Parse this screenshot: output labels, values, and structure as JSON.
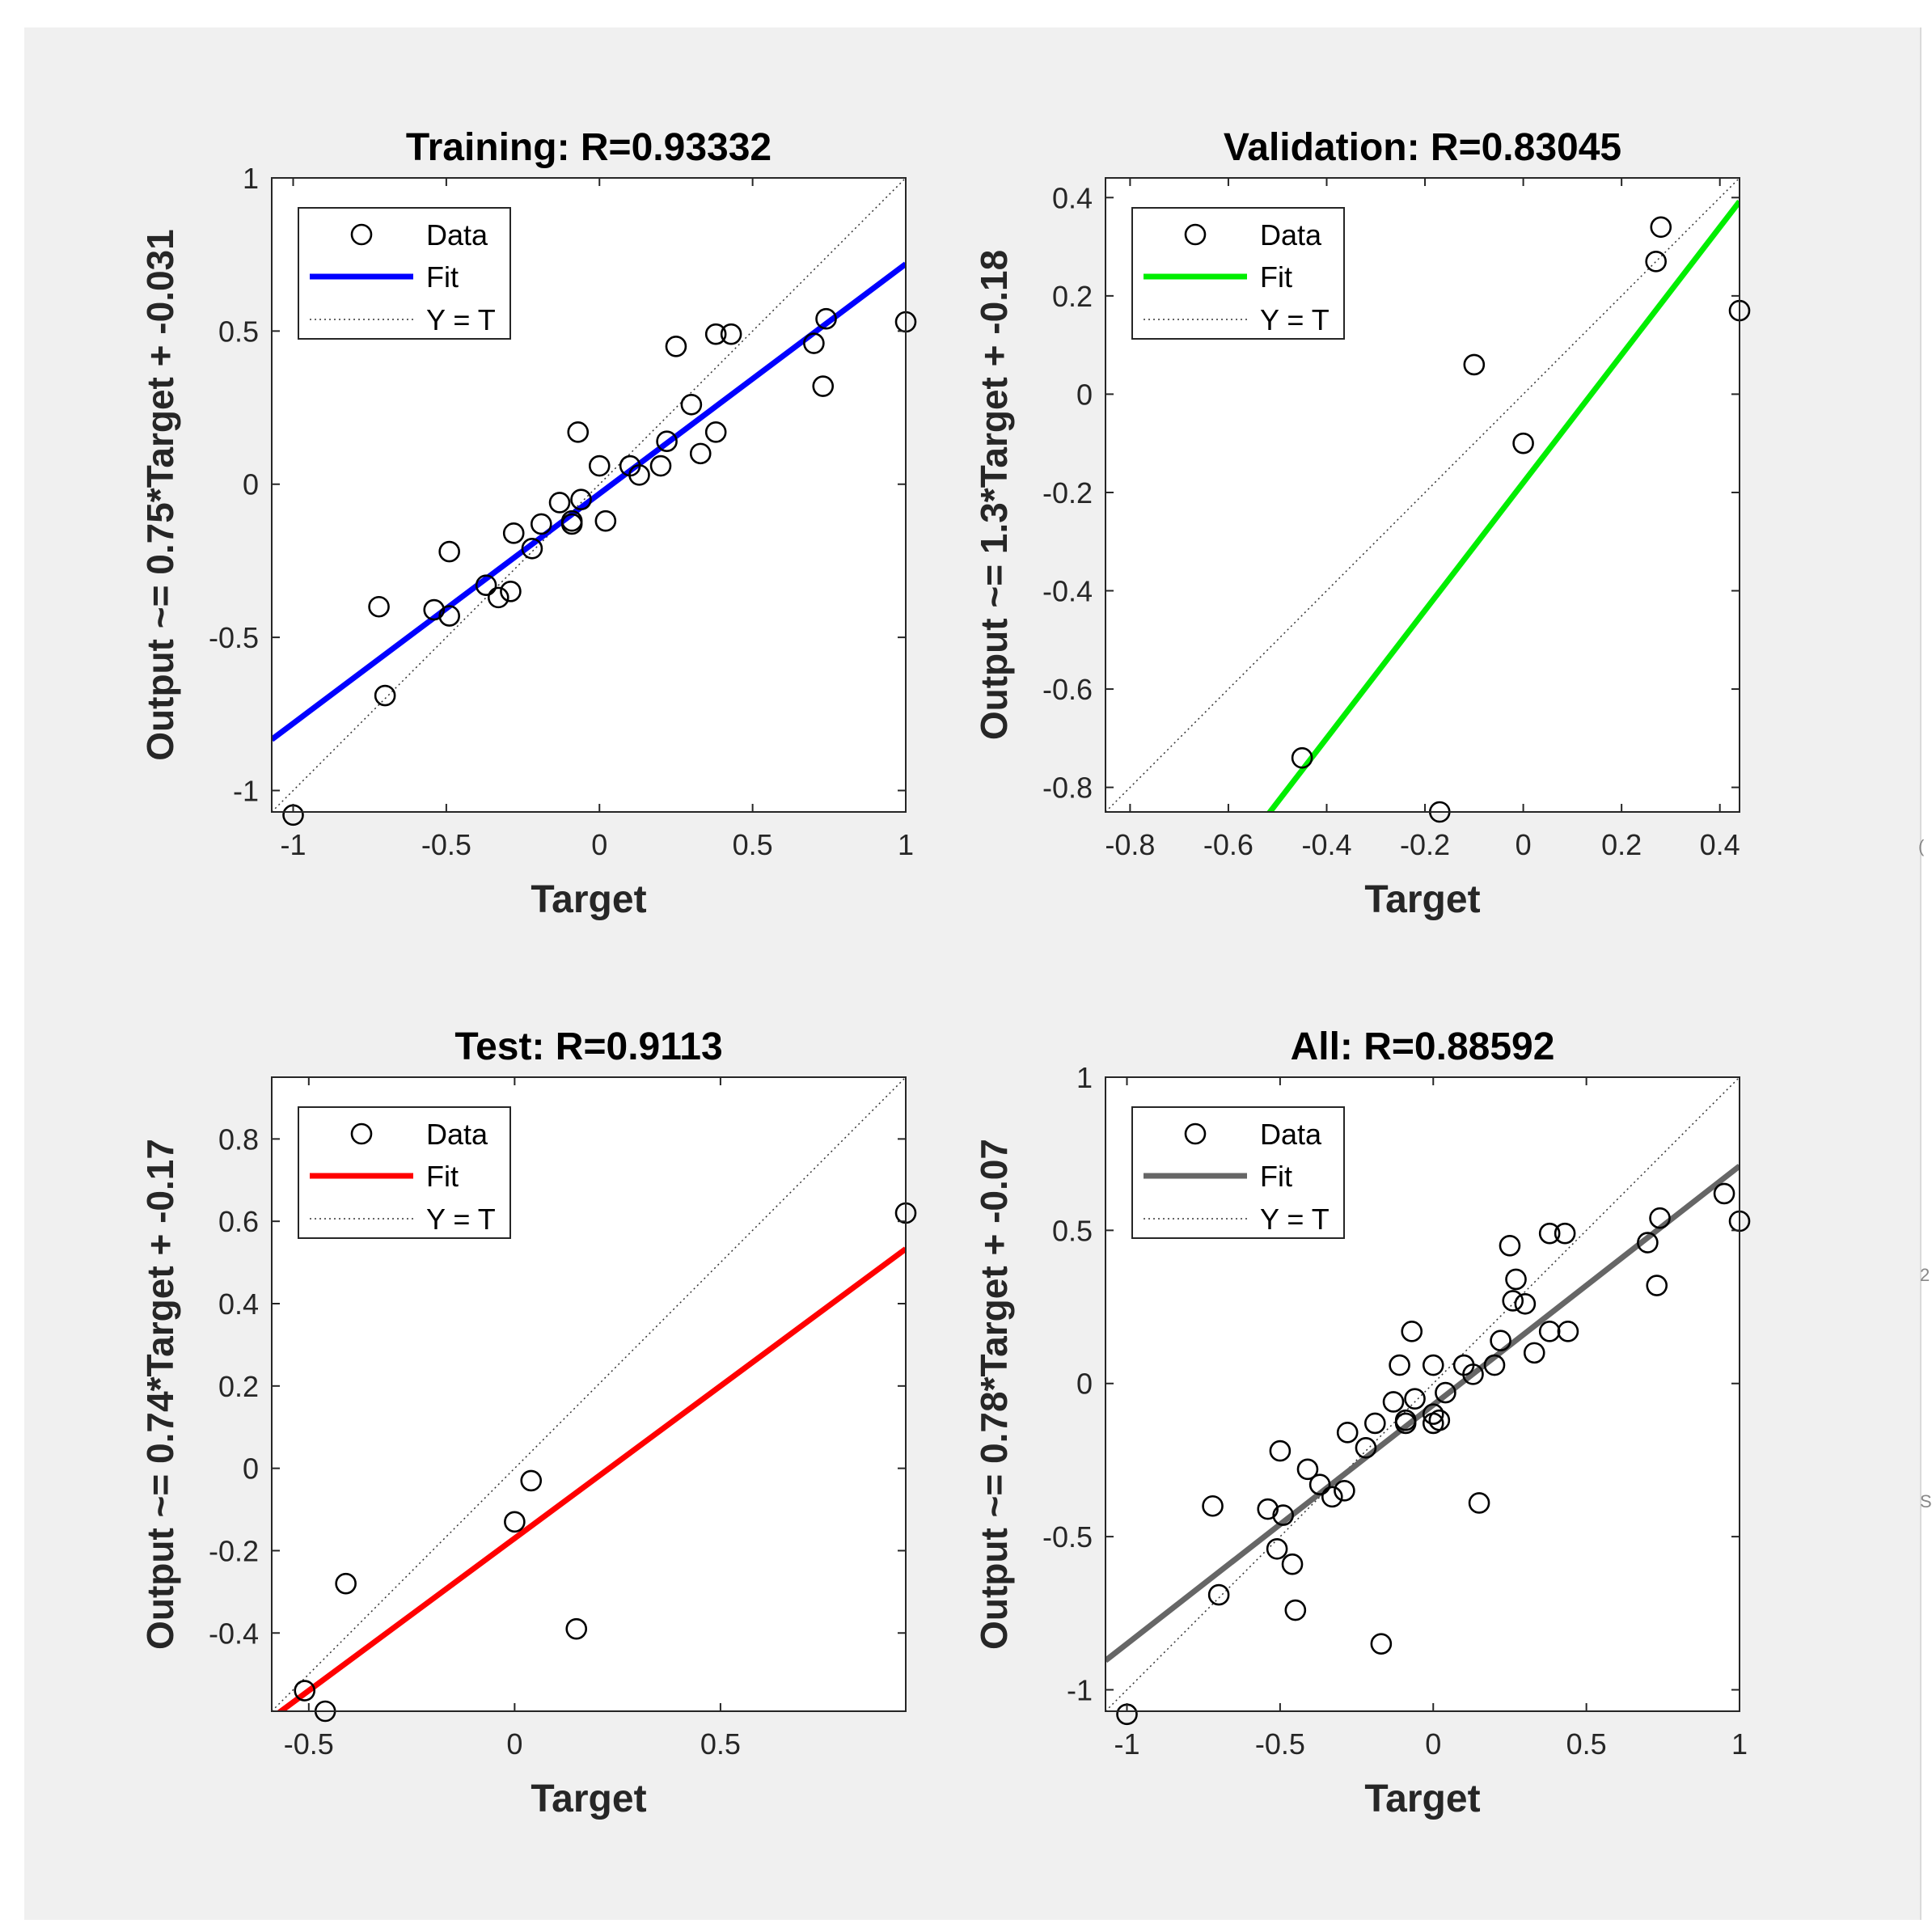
{
  "figure": {
    "background": "#f0f0f0",
    "edge_marks": [
      "(",
      "2",
      "S"
    ]
  },
  "chart_data": [
    {
      "type": "scatter",
      "title": "Training: R=0.93332",
      "xlabel": "Target",
      "ylabel": "Output ~= 0.75*Target + -0.031",
      "xlim": [
        -1.07,
        1.0
      ],
      "ylim": [
        -1.07,
        1.0
      ],
      "xticks": [
        -1,
        -0.5,
        0,
        0.5,
        1
      ],
      "xtick_labels": [
        "-1",
        "-0.5",
        "0",
        "0.5",
        "1"
      ],
      "yticks": [
        -1,
        -0.5,
        0,
        0.5,
        1
      ],
      "ytick_labels": [
        "-1",
        "-0.5",
        "0",
        "0.5",
        "1"
      ],
      "fit": {
        "slope": 0.75,
        "intercept": -0.031,
        "color": "#0000ff"
      },
      "legend": {
        "position": "top-left",
        "entries": [
          "Data",
          "Fit",
          "Y = T"
        ]
      },
      "points": [
        [
          -1.0,
          -1.08
        ],
        [
          -0.72,
          -0.4
        ],
        [
          -0.7,
          -0.69
        ],
        [
          -0.54,
          -0.41
        ],
        [
          -0.49,
          -0.22
        ],
        [
          -0.49,
          -0.43
        ],
        [
          -0.37,
          -0.33
        ],
        [
          -0.33,
          -0.37
        ],
        [
          -0.29,
          -0.35
        ],
        [
          -0.28,
          -0.16
        ],
        [
          -0.22,
          -0.21
        ],
        [
          -0.19,
          -0.13
        ],
        [
          -0.13,
          -0.06
        ],
        [
          -0.09,
          -0.12
        ],
        [
          -0.09,
          -0.13
        ],
        [
          -0.07,
          0.17
        ],
        [
          -0.06,
          -0.05
        ],
        [
          0.0,
          0.06
        ],
        [
          0.02,
          -0.12
        ],
        [
          0.1,
          0.06
        ],
        [
          0.13,
          0.03
        ],
        [
          0.2,
          0.06
        ],
        [
          0.22,
          0.14
        ],
        [
          0.25,
          0.45
        ],
        [
          0.3,
          0.26
        ],
        [
          0.33,
          0.1
        ],
        [
          0.38,
          0.17
        ],
        [
          0.38,
          0.49
        ],
        [
          0.43,
          0.49
        ],
        [
          0.7,
          0.46
        ],
        [
          0.73,
          0.32
        ],
        [
          0.74,
          0.54
        ],
        [
          1.0,
          0.53
        ]
      ]
    },
    {
      "type": "scatter",
      "title": "Validation: R=0.83045",
      "xlabel": "Target",
      "ylabel": "Output ~= 1.3*Target + -0.18",
      "xlim": [
        -0.85,
        0.44
      ],
      "ylim": [
        -0.85,
        0.44
      ],
      "xticks": [
        -0.8,
        -0.6,
        -0.4,
        -0.2,
        0,
        0.2,
        0.4
      ],
      "xtick_labels": [
        "-0.8",
        "-0.6",
        "-0.4",
        "-0.2",
        "0",
        "0.2",
        "0.4"
      ],
      "yticks": [
        -0.8,
        -0.6,
        -0.4,
        -0.2,
        0,
        0.2,
        0.4
      ],
      "ytick_labels": [
        "-0.8",
        "-0.6",
        "-0.4",
        "-0.2",
        "0",
        "0.2",
        "0.4"
      ],
      "fit": {
        "slope": 1.3,
        "intercept": -0.18,
        "color": "#00ee00"
      },
      "legend": {
        "position": "top-left",
        "entries": [
          "Data",
          "Fit",
          "Y = T"
        ]
      },
      "points": [
        [
          -0.45,
          -0.74
        ],
        [
          -0.17,
          -0.85
        ],
        [
          -0.1,
          0.06
        ],
        [
          0.0,
          -0.1
        ],
        [
          0.27,
          0.27
        ],
        [
          0.28,
          0.34
        ],
        [
          0.44,
          0.17
        ]
      ]
    },
    {
      "type": "scatter",
      "title": "Test: R=0.9113",
      "xlabel": "Target",
      "ylabel": "Output ~= 0.74*Target + -0.17",
      "xlim": [
        -0.59,
        0.95
      ],
      "ylim": [
        -0.59,
        0.95
      ],
      "xticks": [
        -0.5,
        0,
        0.5
      ],
      "xtick_labels": [
        "-0.5",
        "0",
        "0.5"
      ],
      "yticks": [
        -0.4,
        -0.2,
        0,
        0.2,
        0.4,
        0.6,
        0.8
      ],
      "ytick_labels": [
        "-0.4",
        "-0.2",
        "0",
        "0.2",
        "0.4",
        "0.6",
        "0.8"
      ],
      "fit": {
        "slope": 0.74,
        "intercept": -0.17,
        "color": "#ff0000"
      },
      "legend": {
        "position": "top-left",
        "entries": [
          "Data",
          "Fit",
          "Y = T"
        ]
      },
      "points": [
        [
          -0.51,
          -0.54
        ],
        [
          -0.46,
          -0.59
        ],
        [
          -0.41,
          -0.28
        ],
        [
          0.0,
          -0.13
        ],
        [
          0.04,
          -0.03
        ],
        [
          0.15,
          -0.39
        ],
        [
          0.95,
          0.62
        ]
      ]
    },
    {
      "type": "scatter",
      "title": "All: R=0.88592",
      "xlabel": "Target",
      "ylabel": "Output ~= 0.78*Target + -0.07",
      "xlim": [
        -1.07,
        1.0
      ],
      "ylim": [
        -1.07,
        1.0
      ],
      "xticks": [
        -1,
        -0.5,
        0,
        0.5,
        1
      ],
      "xtick_labels": [
        "-1",
        "-0.5",
        "0",
        "0.5",
        "1"
      ],
      "yticks": [
        -1,
        -0.5,
        0,
        0.5,
        1
      ],
      "ytick_labels": [
        "-1",
        "-0.5",
        "0",
        "0.5",
        "1"
      ],
      "fit": {
        "slope": 0.78,
        "intercept": -0.07,
        "color": "#666666"
      },
      "legend": {
        "position": "top-left",
        "entries": [
          "Data",
          "Fit",
          "Y = T"
        ]
      },
      "points": [
        [
          -1.0,
          -1.08
        ],
        [
          -0.72,
          -0.4
        ],
        [
          -0.7,
          -0.69
        ],
        [
          -0.54,
          -0.41
        ],
        [
          -0.51,
          -0.54
        ],
        [
          -0.5,
          -0.22
        ],
        [
          -0.49,
          -0.43
        ],
        [
          -0.46,
          -0.59
        ],
        [
          -0.45,
          -0.74
        ],
        [
          -0.41,
          -0.28
        ],
        [
          -0.37,
          -0.33
        ],
        [
          -0.33,
          -0.37
        ],
        [
          -0.29,
          -0.35
        ],
        [
          -0.28,
          -0.16
        ],
        [
          -0.22,
          -0.21
        ],
        [
          -0.19,
          -0.13
        ],
        [
          -0.17,
          -0.85
        ],
        [
          -0.13,
          -0.06
        ],
        [
          -0.11,
          0.06
        ],
        [
          -0.09,
          -0.12
        ],
        [
          -0.09,
          -0.13
        ],
        [
          -0.07,
          0.17
        ],
        [
          -0.06,
          -0.05
        ],
        [
          0.0,
          0.06
        ],
        [
          0.0,
          -0.1
        ],
        [
          0.0,
          -0.13
        ],
        [
          0.02,
          -0.12
        ],
        [
          0.04,
          -0.03
        ],
        [
          0.1,
          0.06
        ],
        [
          0.13,
          0.03
        ],
        [
          0.15,
          -0.39
        ],
        [
          0.2,
          0.06
        ],
        [
          0.22,
          0.14
        ],
        [
          0.25,
          0.45
        ],
        [
          0.26,
          0.27
        ],
        [
          0.27,
          0.34
        ],
        [
          0.3,
          0.26
        ],
        [
          0.33,
          0.1
        ],
        [
          0.38,
          0.17
        ],
        [
          0.38,
          0.49
        ],
        [
          0.43,
          0.49
        ],
        [
          0.44,
          0.17
        ],
        [
          0.7,
          0.46
        ],
        [
          0.73,
          0.32
        ],
        [
          0.74,
          0.54
        ],
        [
          0.95,
          0.62
        ],
        [
          1.0,
          0.53
        ]
      ]
    }
  ]
}
